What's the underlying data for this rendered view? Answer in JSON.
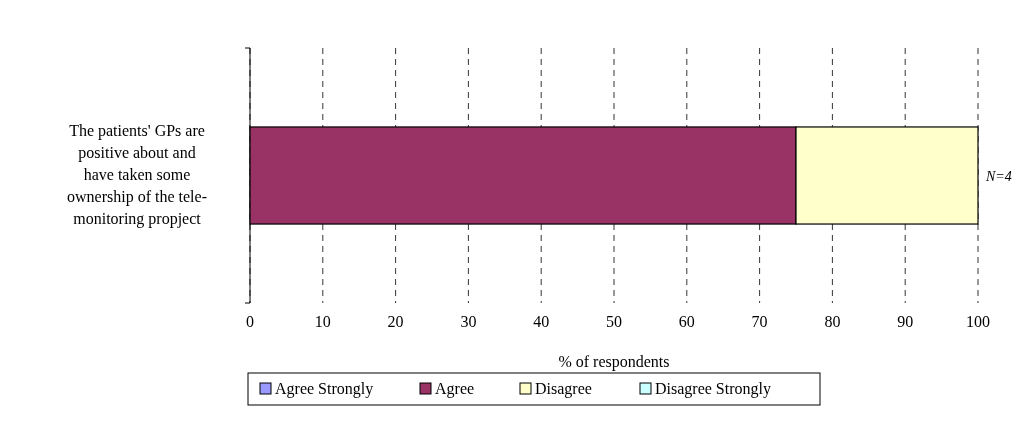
{
  "chart_data": {
    "type": "bar",
    "orientation": "horizontal",
    "stacked": true,
    "categories": [
      "The patients' GPs are positive about and have taken some ownership of the tele-monitoring propject"
    ],
    "series": [
      {
        "name": "Agree Strongly",
        "color": "#9999ff",
        "values": [
          0
        ]
      },
      {
        "name": "Agree",
        "color": "#993366",
        "values": [
          75
        ]
      },
      {
        "name": "Disagree",
        "color": "#ffffcc",
        "values": [
          25
        ]
      },
      {
        "name": "Disagree Strongly",
        "color": "#ccffff",
        "values": [
          0
        ]
      }
    ],
    "xlim": [
      0,
      100
    ],
    "xticks": [
      0,
      10,
      20,
      30,
      40,
      50,
      60,
      70,
      80,
      90,
      100
    ],
    "xlabel": "% of respondents",
    "grid": "x",
    "legend": "bottom",
    "annotations": [
      "N=4"
    ]
  }
}
